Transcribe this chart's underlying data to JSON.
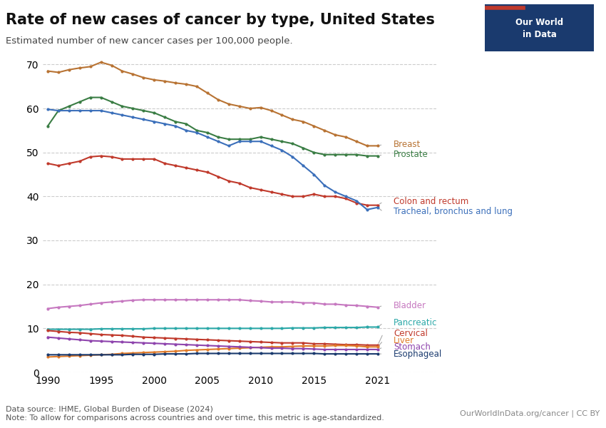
{
  "title": "Rate of new cases of cancer by type, United States",
  "subtitle": "Estimated number of new cancer cases per 100,000 people.",
  "datasource": "Data source: IHME, Global Burden of Disease (2024)",
  "note": "Note: To allow for comparisons across countries and over time, this metric is age-standardized.",
  "watermark": "OurWorldInData.org/cancer | CC BY",
  "years": [
    1990,
    1991,
    1992,
    1993,
    1994,
    1995,
    1996,
    1997,
    1998,
    1999,
    2000,
    2001,
    2002,
    2003,
    2004,
    2005,
    2006,
    2007,
    2008,
    2009,
    2010,
    2011,
    2012,
    2013,
    2014,
    2015,
    2016,
    2017,
    2018,
    2019,
    2020,
    2021
  ],
  "series": {
    "Breast": {
      "color": "#b87333",
      "values": [
        68.5,
        68.2,
        68.8,
        69.2,
        69.5,
        70.5,
        69.8,
        68.5,
        67.8,
        67.0,
        66.5,
        66.2,
        65.8,
        65.5,
        65.0,
        63.5,
        62.0,
        61.0,
        60.5,
        60.0,
        60.2,
        59.5,
        58.5,
        57.5,
        57.0,
        56.0,
        55.0,
        54.0,
        53.5,
        52.5,
        51.5,
        51.5
      ]
    },
    "Prostate": {
      "color": "#3a7d44",
      "values": [
        56.0,
        59.5,
        60.5,
        61.5,
        62.5,
        62.5,
        61.5,
        60.5,
        60.0,
        59.5,
        59.0,
        58.0,
        57.0,
        56.5,
        55.0,
        54.5,
        53.5,
        53.0,
        53.0,
        53.0,
        53.5,
        53.0,
        52.5,
        52.0,
        51.0,
        50.0,
        49.5,
        49.5,
        49.5,
        49.5,
        49.2,
        49.2
      ]
    },
    "Colon and rectum": {
      "color": "#c0392b",
      "values": [
        47.5,
        47.0,
        47.5,
        48.0,
        49.0,
        49.2,
        49.0,
        48.5,
        48.5,
        48.5,
        48.5,
        47.5,
        47.0,
        46.5,
        46.0,
        45.5,
        44.5,
        43.5,
        43.0,
        42.0,
        41.5,
        41.0,
        40.5,
        40.0,
        40.0,
        40.5,
        40.0,
        40.0,
        39.5,
        38.5,
        38.0,
        38.0
      ]
    },
    "Tracheal, bronchus and lung": {
      "color": "#3b6fba",
      "values": [
        59.8,
        59.5,
        59.5,
        59.5,
        59.5,
        59.5,
        59.0,
        58.5,
        58.0,
        57.5,
        57.0,
        56.5,
        56.0,
        55.0,
        54.5,
        53.5,
        52.5,
        51.5,
        52.5,
        52.5,
        52.5,
        51.5,
        50.5,
        49.0,
        47.0,
        45.0,
        42.5,
        41.0,
        40.0,
        39.0,
        37.0,
        37.5
      ]
    },
    "Bladder": {
      "color": "#c678c0",
      "values": [
        14.5,
        14.8,
        15.0,
        15.2,
        15.5,
        15.8,
        16.0,
        16.2,
        16.4,
        16.5,
        16.5,
        16.5,
        16.5,
        16.5,
        16.5,
        16.5,
        16.5,
        16.5,
        16.5,
        16.3,
        16.2,
        16.0,
        16.0,
        16.0,
        15.8,
        15.8,
        15.5,
        15.5,
        15.3,
        15.2,
        15.0,
        14.8
      ]
    },
    "Pancreatic": {
      "color": "#2ba8a8",
      "values": [
        9.8,
        9.8,
        9.8,
        9.8,
        9.8,
        9.9,
        9.9,
        9.9,
        9.9,
        9.9,
        10.0,
        10.0,
        10.0,
        10.0,
        10.0,
        10.0,
        10.0,
        10.0,
        10.0,
        10.0,
        10.0,
        10.0,
        10.0,
        10.1,
        10.1,
        10.1,
        10.2,
        10.2,
        10.2,
        10.2,
        10.3,
        10.3
      ]
    },
    "Cervical": {
      "color": "#c0392b",
      "values": [
        9.5,
        9.3,
        9.1,
        9.0,
        8.8,
        8.6,
        8.5,
        8.4,
        8.2,
        8.0,
        7.9,
        7.8,
        7.7,
        7.6,
        7.5,
        7.4,
        7.3,
        7.2,
        7.1,
        7.0,
        6.9,
        6.8,
        6.7,
        6.7,
        6.7,
        6.5,
        6.5,
        6.4,
        6.3,
        6.3,
        6.2,
        6.2
      ]
    },
    "Liver": {
      "color": "#e07b2a",
      "values": [
        3.5,
        3.6,
        3.7,
        3.8,
        3.9,
        4.0,
        4.1,
        4.3,
        4.4,
        4.5,
        4.6,
        4.7,
        4.8,
        5.0,
        5.1,
        5.2,
        5.3,
        5.4,
        5.5,
        5.6,
        5.7,
        5.8,
        5.8,
        5.9,
        6.0,
        6.0,
        6.0,
        6.1,
        6.1,
        6.0,
        5.8,
        5.8
      ]
    },
    "Stomach": {
      "color": "#8e44ad",
      "values": [
        8.0,
        7.8,
        7.6,
        7.4,
        7.2,
        7.1,
        7.0,
        6.9,
        6.8,
        6.7,
        6.6,
        6.5,
        6.4,
        6.3,
        6.2,
        6.1,
        6.0,
        5.9,
        5.8,
        5.7,
        5.6,
        5.5,
        5.5,
        5.4,
        5.4,
        5.3,
        5.2,
        5.2,
        5.2,
        5.2,
        5.2,
        5.2
      ]
    },
    "Esophageal": {
      "color": "#1a3a6e",
      "values": [
        4.0,
        4.0,
        4.0,
        4.0,
        4.0,
        4.0,
        4.0,
        4.0,
        4.1,
        4.1,
        4.1,
        4.2,
        4.2,
        4.2,
        4.3,
        4.3,
        4.3,
        4.3,
        4.3,
        4.3,
        4.3,
        4.3,
        4.3,
        4.3,
        4.3,
        4.3,
        4.2,
        4.2,
        4.2,
        4.2,
        4.2,
        4.2
      ]
    }
  },
  "ylim": [
    0,
    72
  ],
  "yticks": [
    0,
    10,
    20,
    30,
    40,
    50,
    60,
    70
  ],
  "xlim": [
    1990,
    2021
  ],
  "background_color": "#ffffff",
  "grid_color": "#cccccc",
  "owid_box_color": "#1a3a6e",
  "owid_box_red": "#c0392b"
}
